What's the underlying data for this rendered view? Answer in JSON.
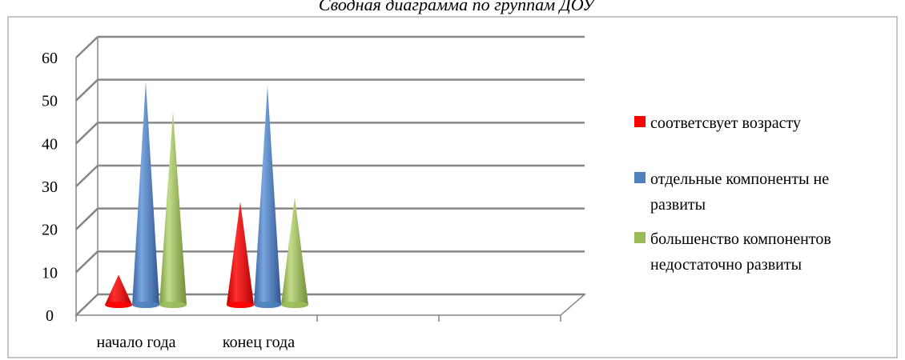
{
  "chart_data": {
    "type": "bar",
    "style": "3d-cone",
    "title": "Сводная диаграмма по группам ДОУ",
    "categories": [
      "начало года",
      "конец года"
    ],
    "series": [
      {
        "name": "соответсвует  возрасту",
        "color": "#ff0000",
        "values": [
          7,
          24
        ]
      },
      {
        "name": "отдельные компоненты не развиты",
        "color": "#4f81bd",
        "values": [
          52,
          51
        ]
      },
      {
        "name": "большенство компонентов недостаточно развиты",
        "color": "#9bbb59",
        "values": [
          45,
          25
        ]
      }
    ],
    "yticks": [
      "0",
      "10",
      "20",
      "30",
      "40",
      "50",
      "60"
    ],
    "ylim": [
      0,
      60
    ],
    "grid": true,
    "legend_position": "right"
  }
}
